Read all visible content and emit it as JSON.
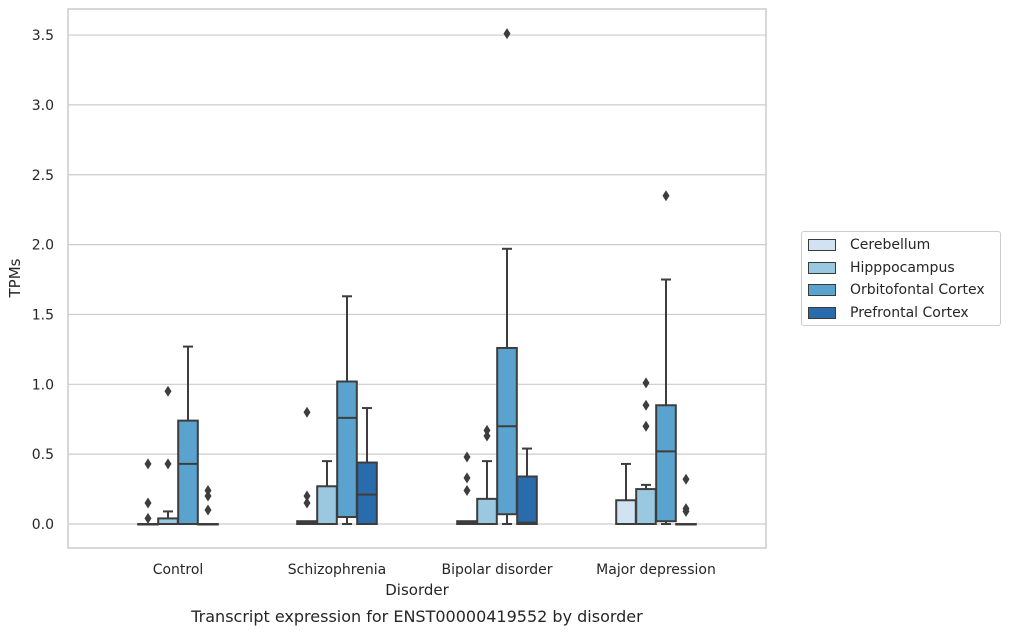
{
  "chart_data": {
    "type": "box",
    "title": "",
    "caption": "Transcript expression for ENST00000419552 by disorder",
    "xlabel": "Disorder",
    "ylabel": "TPMs",
    "ylim": [
      -0.17,
      3.68
    ],
    "yticks": [
      "0.0",
      "0.5",
      "1.0",
      "1.5",
      "2.0",
      "2.5",
      "3.0",
      "3.5"
    ],
    "ytick_values": [
      0,
      0.5,
      1.0,
      1.5,
      2.0,
      2.5,
      3.0,
      3.5
    ],
    "categories": [
      "Control",
      "Schizophrenia",
      "Bipolar disorder",
      "Major depression"
    ],
    "grid": "horizontal",
    "legend_position": "right",
    "series": [
      {
        "name": "Cerebellum",
        "color": "#d1e2f2",
        "boxes": [
          {
            "q1": 0,
            "median": 0,
            "q3": 0,
            "whisker_low": 0,
            "whisker_high": 0,
            "outliers": [
              0.43,
              0.15,
              0.04
            ]
          },
          {
            "q1": 0,
            "median": 0.01,
            "q3": 0.02,
            "whisker_low": 0,
            "whisker_high": 0.02,
            "outliers": [
              0.8,
              0.2,
              0.15
            ]
          },
          {
            "q1": 0,
            "median": 0.01,
            "q3": 0.02,
            "whisker_low": 0,
            "whisker_high": 0.02,
            "outliers": [
              0.48,
              0.33,
              0.24
            ]
          },
          {
            "q1": 0,
            "median": 0,
            "q3": 0.17,
            "whisker_low": 0,
            "whisker_high": 0.43,
            "outliers": []
          }
        ]
      },
      {
        "name": "Hipppocampus",
        "color": "#9ac8e0",
        "boxes": [
          {
            "q1": 0,
            "median": 0,
            "q3": 0.04,
            "whisker_low": 0,
            "whisker_high": 0.09,
            "outliers": [
              0.95,
              0.43
            ]
          },
          {
            "q1": 0,
            "median": 0,
            "q3": 0.27,
            "whisker_low": 0,
            "whisker_high": 0.45,
            "outliers": []
          },
          {
            "q1": 0,
            "median": 0,
            "q3": 0.18,
            "whisker_low": 0,
            "whisker_high": 0.45,
            "outliers": [
              0.67,
              0.63
            ]
          },
          {
            "q1": 0,
            "median": 0,
            "q3": 0.25,
            "whisker_low": 0,
            "whisker_high": 0.28,
            "outliers": [
              1.01,
              0.85,
              0.7
            ]
          }
        ]
      },
      {
        "name": "Orbitofontal Cortex",
        "color": "#5ba3cf",
        "boxes": [
          {
            "q1": 0,
            "median": 0.43,
            "q3": 0.74,
            "whisker_low": 0,
            "whisker_high": 1.27,
            "outliers": []
          },
          {
            "q1": 0.05,
            "median": 0.76,
            "q3": 1.02,
            "whisker_low": 0,
            "whisker_high": 1.63,
            "outliers": []
          },
          {
            "q1": 0.07,
            "median": 0.7,
            "q3": 1.26,
            "whisker_low": 0,
            "whisker_high": 1.97,
            "outliers": [
              3.51
            ]
          },
          {
            "q1": 0.02,
            "median": 0.52,
            "q3": 0.85,
            "whisker_low": 0,
            "whisker_high": 1.75,
            "outliers": [
              2.35
            ]
          }
        ]
      },
      {
        "name": "Prefrontal Cortex",
        "color": "#2a6bac",
        "boxes": [
          {
            "q1": 0,
            "median": 0,
            "q3": 0,
            "whisker_low": 0,
            "whisker_high": 0,
            "outliers": [
              0.24,
              0.2,
              0.1
            ]
          },
          {
            "q1": 0,
            "median": 0.21,
            "q3": 0.44,
            "whisker_low": 0,
            "whisker_high": 0.83,
            "outliers": []
          },
          {
            "q1": 0,
            "median": 0.01,
            "q3": 0.34,
            "whisker_low": 0,
            "whisker_high": 0.54,
            "outliers": []
          },
          {
            "q1": 0,
            "median": 0,
            "q3": 0,
            "whisker_low": 0,
            "whisker_high": 0,
            "outliers": [
              0.32,
              0.11,
              0.09
            ]
          }
        ]
      }
    ]
  }
}
